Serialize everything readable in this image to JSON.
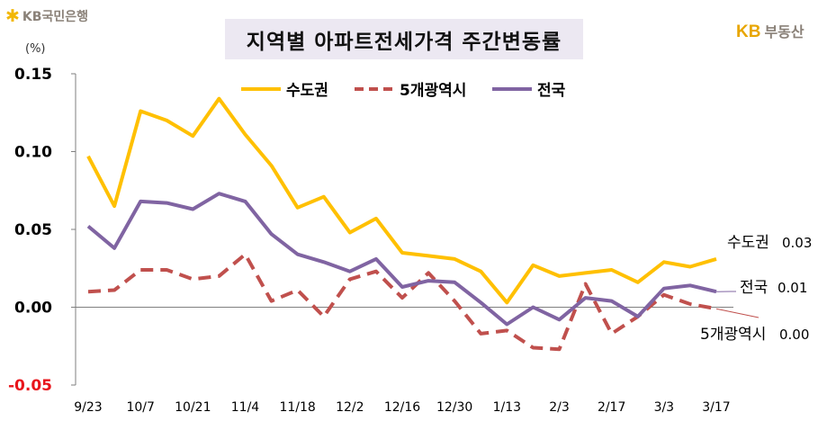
{
  "logo": {
    "text": "KB국민은행",
    "icon": "kb-star-icon"
  },
  "brand": {
    "kb": "KB",
    "name": "부동산"
  },
  "chart_data": {
    "type": "line",
    "title": "지역별 아파트전세가격 주간변동률",
    "ylabel": "(%)",
    "xlabel": "",
    "ylim": [
      -0.05,
      0.15
    ],
    "yticks": [
      0.15,
      0.1,
      0.05,
      0.0,
      -0.05
    ],
    "ytick_labels": [
      "0.15",
      "0.10",
      "0.05",
      "0.00",
      "-0.05"
    ],
    "negative_tick_color": "#e8151b",
    "x": [
      "9/23",
      "9/30",
      "10/7",
      "10/14",
      "10/21",
      "10/28",
      "11/4",
      "11/11",
      "11/18",
      "11/25",
      "12/2",
      "12/9",
      "12/16",
      "12/23",
      "12/30",
      "1/6",
      "1/13",
      "1/20",
      "2/3",
      "2/10",
      "2/17",
      "2/24",
      "3/3",
      "3/10",
      "3/17"
    ],
    "xtick_labels": [
      "9/23",
      "10/7",
      "10/21",
      "11/4",
      "11/18",
      "12/2",
      "12/16",
      "12/30",
      "1/13",
      "2/3",
      "2/17",
      "3/3",
      "3/17"
    ],
    "xtick_indices": [
      0,
      2,
      4,
      6,
      8,
      10,
      12,
      14,
      16,
      18,
      20,
      22,
      24
    ],
    "legend_position": "top",
    "series": [
      {
        "name": "수도권",
        "color": "#ffc000",
        "dash": "solid",
        "values": [
          0.097,
          0.065,
          0.126,
          0.12,
          0.11,
          0.134,
          0.111,
          0.091,
          0.064,
          0.071,
          0.048,
          0.057,
          0.035,
          0.033,
          0.031,
          0.023,
          0.003,
          0.027,
          0.02,
          0.022,
          0.024,
          0.016,
          0.029,
          0.026,
          0.031
        ]
      },
      {
        "name": "5개광역시",
        "color": "#c0504d",
        "dash": "dashed",
        "values": [
          0.01,
          0.011,
          0.024,
          0.024,
          0.018,
          0.02,
          0.034,
          0.004,
          0.011,
          -0.006,
          0.018,
          0.023,
          0.006,
          0.022,
          0.004,
          -0.017,
          -0.015,
          -0.026,
          -0.027,
          0.015,
          -0.017,
          -0.006,
          0.008,
          0.002,
          -0.001
        ]
      },
      {
        "name": "전국",
        "color": "#8064a2",
        "dash": "solid",
        "values": [
          0.052,
          0.038,
          0.068,
          0.067,
          0.063,
          0.073,
          0.068,
          0.047,
          0.034,
          0.029,
          0.023,
          0.031,
          0.013,
          0.017,
          0.016,
          0.003,
          -0.011,
          0.0,
          -0.008,
          0.006,
          0.004,
          -0.006,
          0.012,
          0.014,
          0.01
        ]
      }
    ],
    "annotations": [
      {
        "series": "수도권",
        "label": "수도권",
        "value": "0.03"
      },
      {
        "series": "전국",
        "label": "전국",
        "value": "0.01"
      },
      {
        "series": "5개광역시",
        "label": "5개광역시",
        "value": "0.00"
      }
    ]
  }
}
